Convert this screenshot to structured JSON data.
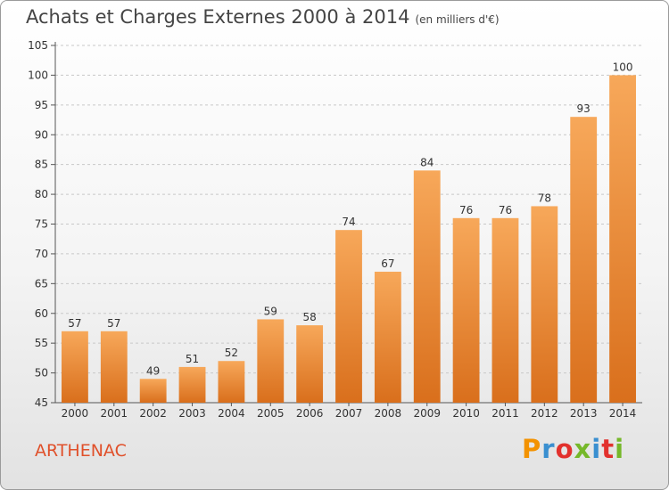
{
  "header": {
    "title": "Achats et Charges Externes 2000 à 2014",
    "subtitle": "(en milliers d'€)"
  },
  "footer": {
    "place": "ARTHENAC",
    "brand_letters": [
      "P",
      "r",
      "o",
      "x",
      "i",
      "t",
      "i"
    ],
    "brand_colors": [
      "#f39200",
      "#3a8fd0",
      "#e2312d",
      "#76b82a",
      "#3a8fd0",
      "#e2312d",
      "#76b82a"
    ]
  },
  "colors": {
    "bar_light": "#f7a85a",
    "bar_dark": "#d96f1c",
    "place": "#e0502a"
  },
  "chart_data": {
    "type": "bar",
    "title": "Achats et Charges Externes 2000 à 2014",
    "categories": [
      "2000",
      "2001",
      "2002",
      "2003",
      "2004",
      "2005",
      "2006",
      "2007",
      "2008",
      "2009",
      "2010",
      "2011",
      "2012",
      "2013",
      "2014"
    ],
    "values": [
      57,
      57,
      49,
      51,
      52,
      59,
      58,
      74,
      67,
      84,
      76,
      76,
      78,
      93,
      100
    ],
    "ylim": [
      45,
      105
    ],
    "yticks": [
      45,
      50,
      55,
      60,
      65,
      70,
      75,
      80,
      85,
      90,
      95,
      100,
      105
    ],
    "grid": true
  }
}
